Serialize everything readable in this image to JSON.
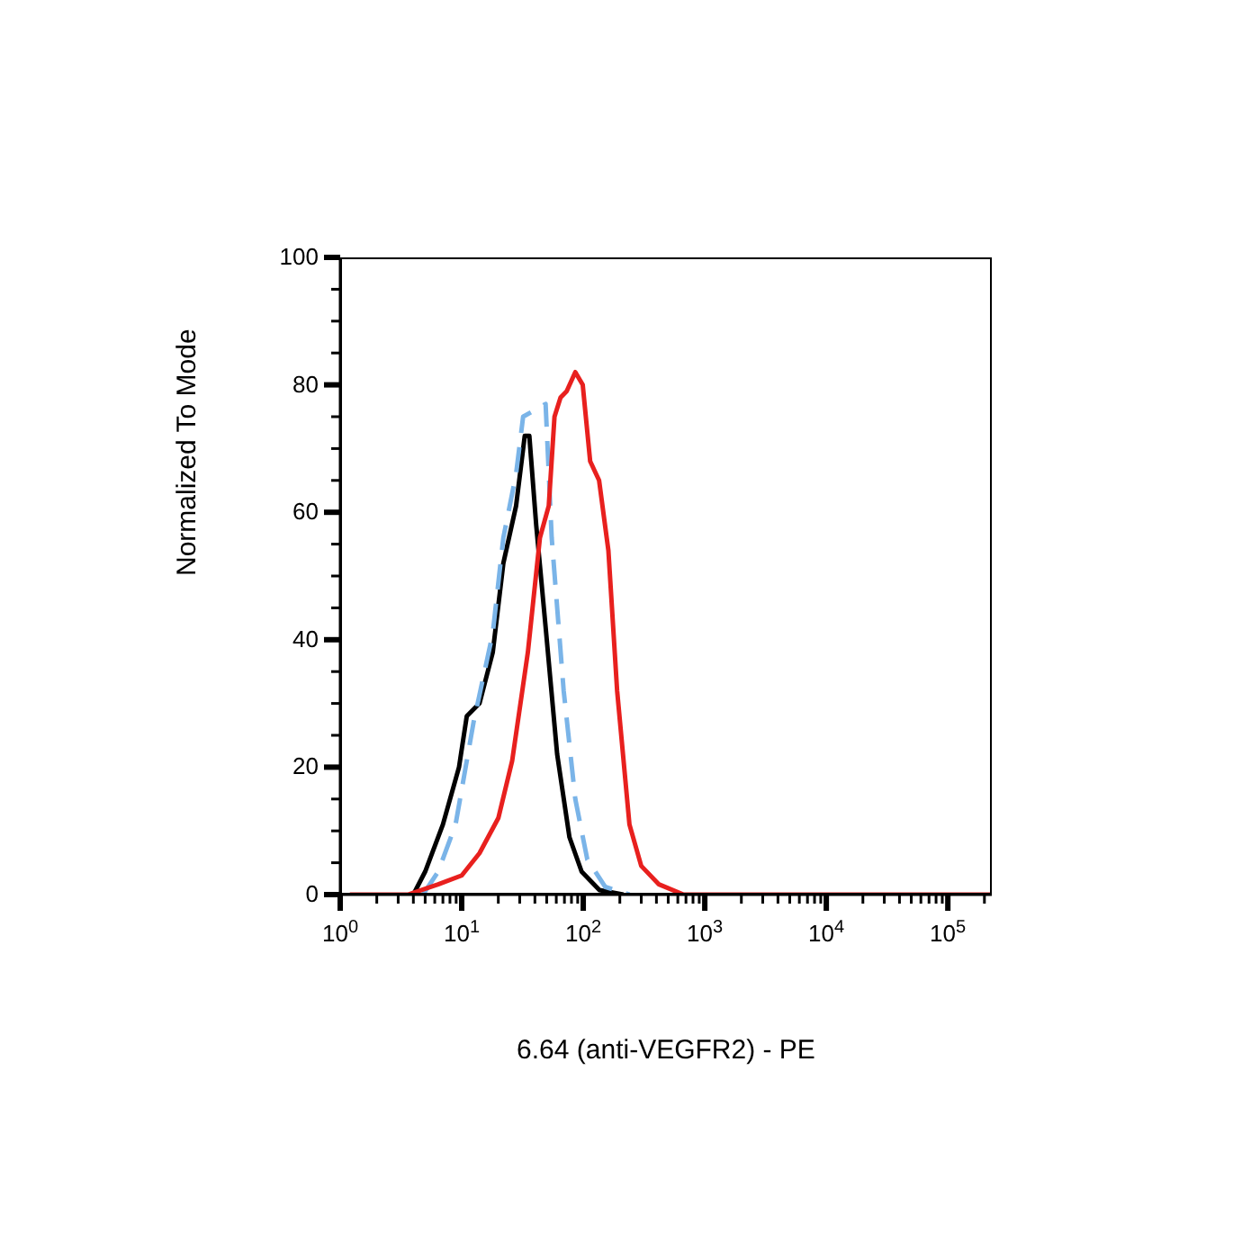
{
  "chart_data": {
    "type": "line",
    "xlabel": "6.64 (anti-VEGFR2) - PE",
    "ylabel": "Normalized To Mode",
    "log": "x",
    "marker": "none",
    "xlim": [
      1,
      230000
    ],
    "xticks": [
      {
        "value": 1,
        "label": "10$^{0}$"
      },
      {
        "value": 2,
        "label": null
      },
      {
        "value": 3,
        "label": null
      },
      {
        "value": 4,
        "label": null
      },
      {
        "value": 5,
        "label": null
      },
      {
        "value": 6,
        "label": null
      },
      {
        "value": 7,
        "label": null
      },
      {
        "value": 8,
        "label": null
      },
      {
        "value": 9,
        "label": null
      },
      {
        "value": 10,
        "label": "10$^{1}$"
      },
      {
        "value": 20,
        "label": null
      },
      {
        "value": 30,
        "label": null
      },
      {
        "value": 40,
        "label": null
      },
      {
        "value": 50,
        "label": null
      },
      {
        "value": 60,
        "label": null
      },
      {
        "value": 70,
        "label": null
      },
      {
        "value": 80,
        "label": null
      },
      {
        "value": 90,
        "label": null
      },
      {
        "value": 100,
        "label": "10$^{2}$"
      },
      {
        "value": 200,
        "label": null
      },
      {
        "value": 300,
        "label": null
      },
      {
        "value": 400,
        "label": null
      },
      {
        "value": 500,
        "label": null
      },
      {
        "value": 600,
        "label": null
      },
      {
        "value": 700,
        "label": null
      },
      {
        "value": 800,
        "label": null
      },
      {
        "value": 900,
        "label": null
      },
      {
        "value": 1000,
        "label": "10$^{3}$"
      },
      {
        "value": 2000,
        "label": null
      },
      {
        "value": 3000,
        "label": null
      },
      {
        "value": 4000,
        "label": null
      },
      {
        "value": 5000,
        "label": null
      },
      {
        "value": 6000,
        "label": null
      },
      {
        "value": 7000,
        "label": null
      },
      {
        "value": 8000,
        "label": null
      },
      {
        "value": 9000,
        "label": null
      },
      {
        "value": 10000,
        "label": "10$^{4}$"
      },
      {
        "value": 20000,
        "label": null
      },
      {
        "value": 30000,
        "label": null
      },
      {
        "value": 40000,
        "label": null
      },
      {
        "value": 50000,
        "label": null
      },
      {
        "value": 60000,
        "label": null
      },
      {
        "value": 70000,
        "label": null
      },
      {
        "value": 80000,
        "label": null
      },
      {
        "value": 90000,
        "label": null
      },
      {
        "value": 100000,
        "label": "10$^{5}$"
      },
      {
        "value": 200000,
        "label": null
      }
    ],
    "ylim": [
      0,
      100
    ],
    "yticks": [
      0,
      {
        "value": 5,
        "label": null
      },
      {
        "value": 10,
        "label": null
      },
      {
        "value": 15,
        "label": null
      },
      20,
      {
        "value": 25,
        "label": null
      },
      {
        "value": 30,
        "label": null
      },
      {
        "value": 35,
        "label": null
      },
      40,
      {
        "value": 45,
        "label": null
      },
      {
        "value": 50,
        "label": null
      },
      {
        "value": 55,
        "label": null
      },
      60,
      {
        "value": 65,
        "label": null
      },
      {
        "value": 70,
        "label": null
      },
      {
        "value": 75,
        "label": null
      },
      80,
      {
        "value": 85,
        "label": null
      },
      {
        "value": 90,
        "label": null
      },
      {
        "value": 95,
        "label": null
      },
      100
    ],
    "series": [
      {
        "color": "#000000",
        "line_style": "solid",
        "x": [
          4,
          5,
          7,
          9.5,
          11,
          14,
          18,
          22,
          28,
          33,
          36,
          41,
          49,
          61,
          77,
          97,
          136,
          214
        ],
        "values": [
          0,
          3.6,
          11,
          20,
          28,
          30,
          38,
          52,
          61,
          72,
          72,
          58,
          42,
          22,
          9,
          3.6,
          0.7,
          0
        ]
      },
      {
        "color": "#7ab4e8",
        "line_style": "dashed",
        "x": [
          4.8,
          6.4,
          8.9,
          12.5,
          18,
          22,
          28,
          32,
          49,
          55,
          69,
          86,
          108,
          152,
          240
        ],
        "values": [
          0,
          3.6,
          11,
          27,
          41,
          56,
          66,
          75,
          77,
          56,
          32,
          15,
          5.5,
          1.2,
          0
        ]
      },
      {
        "color": "#e8201e",
        "line_style": "solid",
        "x": [
          1.2,
          3.6,
          6.4,
          10,
          14,
          20,
          26,
          35,
          44,
          52,
          58,
          65,
          73,
          86,
          99,
          114,
          135,
          161,
          190,
          240,
          300,
          420,
          670,
          230000
        ],
        "values": [
          0,
          0,
          1.6,
          3,
          6.5,
          12,
          21,
          38,
          56,
          61,
          75,
          78,
          79,
          82,
          80,
          68,
          65,
          54,
          32,
          11,
          4.5,
          1.6,
          0,
          0
        ]
      }
    ]
  }
}
